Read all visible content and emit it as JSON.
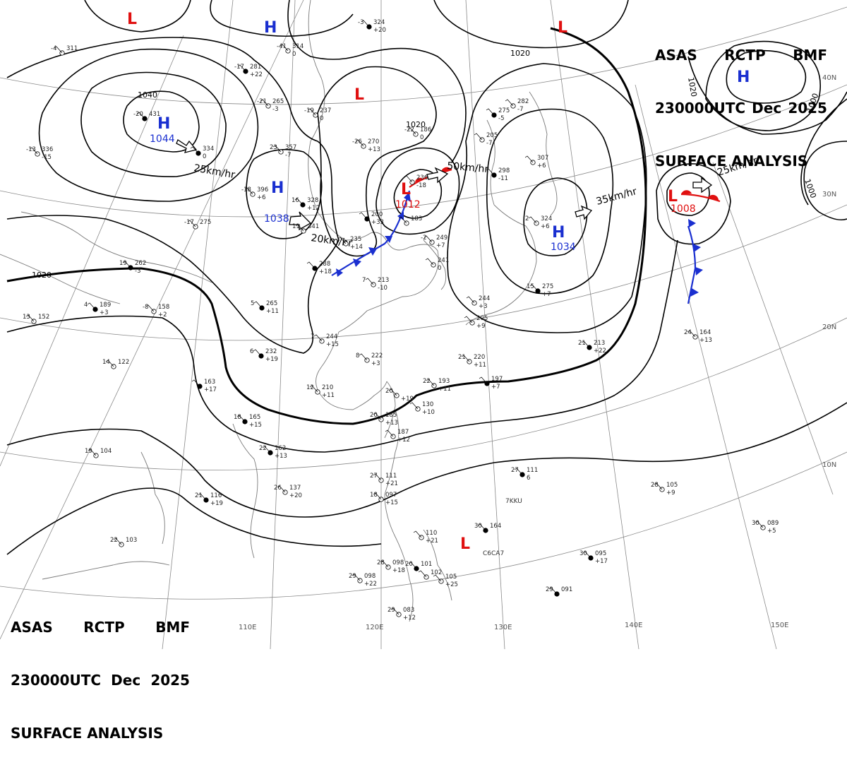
{
  "header": {
    "line1": [
      "ASAS",
      "RCTP",
      "BMF"
    ],
    "line2": [
      "230000UTC",
      "Dec",
      "2025"
    ],
    "line3": "SURFACE ANALYSIS"
  },
  "colors": {
    "high": "#1a2fd0",
    "low": "#e01010",
    "cold_front": "#1a2fd0",
    "warm_front": "#e01010",
    "isobar": "#000000",
    "coast": "#7a7a7a",
    "grid": "#8a8a8a"
  },
  "longitude_labels": [
    "110E",
    "120E",
    "130E",
    "140E",
    "150E"
  ],
  "latitude_labels": [
    "40N",
    "30N",
    "20N",
    "10N"
  ],
  "isobar_labels": [
    "1040",
    "1020",
    "1020",
    "1020",
    "1020",
    "1000",
    "1000"
  ],
  "pressure_centers": [
    {
      "type": "H",
      "value": "1044"
    },
    {
      "type": "H",
      "value": "1038"
    },
    {
      "type": "H",
      "value": "1034"
    },
    {
      "type": "H",
      "value": ""
    },
    {
      "type": "H",
      "value": ""
    },
    {
      "type": "L",
      "value": "1012"
    },
    {
      "type": "L",
      "value": "1008"
    },
    {
      "type": "L",
      "value": ""
    },
    {
      "type": "L",
      "value": ""
    },
    {
      "type": "L",
      "value": ""
    },
    {
      "type": "L",
      "value": ""
    }
  ],
  "movements": [
    "25km/hr",
    "20km/hr",
    "50km/hr",
    "35km/hr",
    "25km/hr"
  ],
  "station_labels": [
    "7KKU",
    "C6CA7"
  ],
  "station_plots": [
    {
      "t": "-20",
      "p": "431",
      "tend": ""
    },
    {
      "t": "-4",
      "p": "311",
      "tend": ""
    },
    {
      "t": "-41",
      "p": "314",
      "tend": "0"
    },
    {
      "t": "-17",
      "p": "281",
      "tend": "+22"
    },
    {
      "t": "-21",
      "p": "265",
      "tend": "-3"
    },
    {
      "t": "-19",
      "p": "237",
      "tend": "0"
    },
    {
      "t": "-3",
      "p": "324",
      "tend": "+20"
    },
    {
      "t": "-22",
      "p": "186",
      "tend": "0"
    },
    {
      "t": "-26",
      "p": "270",
      "tend": "+13"
    },
    {
      "t": "",
      "p": "334",
      "tend": "0"
    },
    {
      "t": "23",
      "p": "357",
      "tend": "-7"
    },
    {
      "t": "-18",
      "p": "396",
      "tend": "+6"
    },
    {
      "t": "16",
      "p": "328",
      "tend": "+12"
    },
    {
      "t": "11",
      "p": "341",
      "tend": ""
    },
    {
      "t": "",
      "p": "236",
      "tend": "-18"
    },
    {
      "t": "",
      "p": "200",
      "tend": "+33"
    },
    {
      "t": "",
      "p": "183",
      "tend": ""
    },
    {
      "t": "",
      "p": "235",
      "tend": "+14"
    },
    {
      "t": "",
      "p": "288",
      "tend": "+18"
    },
    {
      "t": "-2",
      "p": "249",
      "tend": "+7"
    },
    {
      "t": "",
      "p": "241",
      "tend": "0"
    },
    {
      "t": "",
      "p": "298",
      "tend": "-11"
    },
    {
      "t": "",
      "p": "307",
      "tend": "+6"
    },
    {
      "t": "",
      "p": "205",
      "tend": "-7"
    },
    {
      "t": "",
      "p": "275",
      "tend": "-5"
    },
    {
      "t": "",
      "p": "282",
      "tend": "-7"
    },
    {
      "t": "2",
      "p": "324",
      "tend": "+6"
    },
    {
      "t": "15",
      "p": "275",
      "tend": "+7"
    },
    {
      "t": "",
      "p": "244",
      "tend": "+3"
    },
    {
      "t": "",
      "p": "205",
      "tend": "+9"
    },
    {
      "t": "19",
      "p": "262",
      "tend": "-3"
    },
    {
      "t": "-17",
      "p": "275",
      "tend": ""
    },
    {
      "t": "-13",
      "p": "336",
      "tend": "-15"
    },
    {
      "t": "4",
      "p": "189",
      "tend": "+3"
    },
    {
      "t": "-8",
      "p": "158",
      "tend": "+2"
    },
    {
      "t": "13",
      "p": "152",
      "tend": ""
    },
    {
      "t": "5",
      "p": "265",
      "tend": "+11"
    },
    {
      "t": "7",
      "p": "213",
      "tend": "-10"
    },
    {
      "t": "7",
      "p": "244",
      "tend": "+15"
    },
    {
      "t": "6",
      "p": "232",
      "tend": "+19"
    },
    {
      "t": "8",
      "p": "222",
      "tend": "+3"
    },
    {
      "t": "21",
      "p": "220",
      "tend": "+11"
    },
    {
      "t": "21",
      "p": "213",
      "tend": "+22"
    },
    {
      "t": "24",
      "p": "164",
      "tend": "+13"
    },
    {
      "t": "14",
      "p": "122",
      "tend": ""
    },
    {
      "t": "",
      "p": "163",
      "tend": "+17"
    },
    {
      "t": "12",
      "p": "210",
      "tend": "+11"
    },
    {
      "t": "22",
      "p": "193",
      "tend": "+11"
    },
    {
      "t": "",
      "p": "197",
      "tend": "+7"
    },
    {
      "t": "20",
      "p": "",
      "tend": "+19"
    },
    {
      "t": "",
      "p": "130",
      "tend": "+10"
    },
    {
      "t": "18",
      "p": "165",
      "tend": "+15"
    },
    {
      "t": "20",
      "p": "185",
      "tend": "+13"
    },
    {
      "t": "",
      "p": "187",
      "tend": "+12"
    },
    {
      "t": "22",
      "p": "162",
      "tend": "+13"
    },
    {
      "t": "19",
      "p": "104",
      "tend": ""
    },
    {
      "t": "26",
      "p": "137",
      "tend": "+20"
    },
    {
      "t": "21",
      "p": "116",
      "tend": "+19"
    },
    {
      "t": "27",
      "p": "111",
      "tend": "+21"
    },
    {
      "t": "18",
      "p": "097",
      "tend": "+15"
    },
    {
      "t": "27",
      "p": "111",
      "tend": "6"
    },
    {
      "t": "28",
      "p": "105",
      "tend": "+9"
    },
    {
      "t": "",
      "p": "110",
      "tend": "+21"
    },
    {
      "t": "30",
      "p": "164",
      "tend": ""
    },
    {
      "t": "30",
      "p": "089",
      "tend": "+5"
    },
    {
      "t": "22",
      "p": "103",
      "tend": ""
    },
    {
      "t": "30",
      "p": "095",
      "tend": "+17"
    },
    {
      "t": "28",
      "p": "098",
      "tend": "+18"
    },
    {
      "t": "29",
      "p": "098",
      "tend": "+22"
    },
    {
      "t": "20",
      "p": "101",
      "tend": ""
    },
    {
      "t": "",
      "p": "102",
      "tend": ""
    },
    {
      "t": "",
      "p": "105",
      "tend": "+25"
    },
    {
      "t": "29",
      "p": "091",
      "tend": ""
    },
    {
      "t": "29",
      "p": "083",
      "tend": "+12"
    }
  ]
}
